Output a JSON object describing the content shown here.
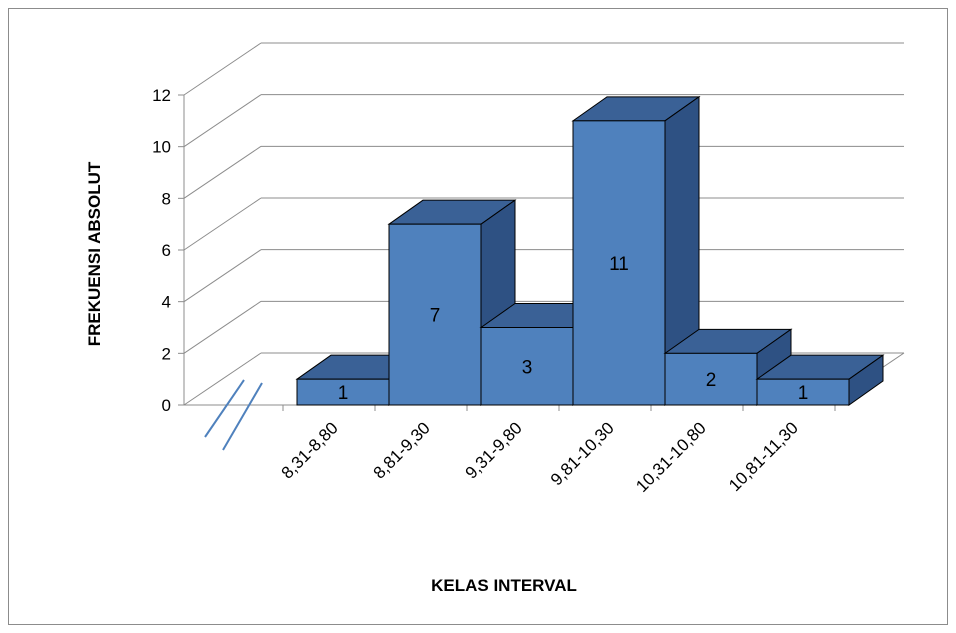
{
  "chart_data": {
    "type": "bar",
    "style": "3d-histogram",
    "categories": [
      "8,31-8,80",
      "8,81-9,30",
      "9,31-9,80",
      "9,81-10,30",
      "10,31-10,80",
      "10,81-11,30"
    ],
    "values": [
      1,
      7,
      3,
      11,
      2,
      1
    ],
    "data_labels": [
      "1",
      "7",
      "3",
      "11",
      "2",
      "1"
    ],
    "ylabel": "FREKUENSI ABSOLUT",
    "xlabel": "KELAS INTERVAL",
    "ylim": [
      0,
      12
    ],
    "yticks": [
      "0",
      "2",
      "4",
      "6",
      "8",
      "10",
      "12"
    ],
    "grid": true,
    "axis_break": true,
    "legend": "none",
    "colors": {
      "front": "#4F81BD",
      "top": "#3A6196",
      "side": "#2E5183",
      "outline": "#000000",
      "grid": "#8c8c8c",
      "axis_break": "#4F81BD"
    }
  }
}
